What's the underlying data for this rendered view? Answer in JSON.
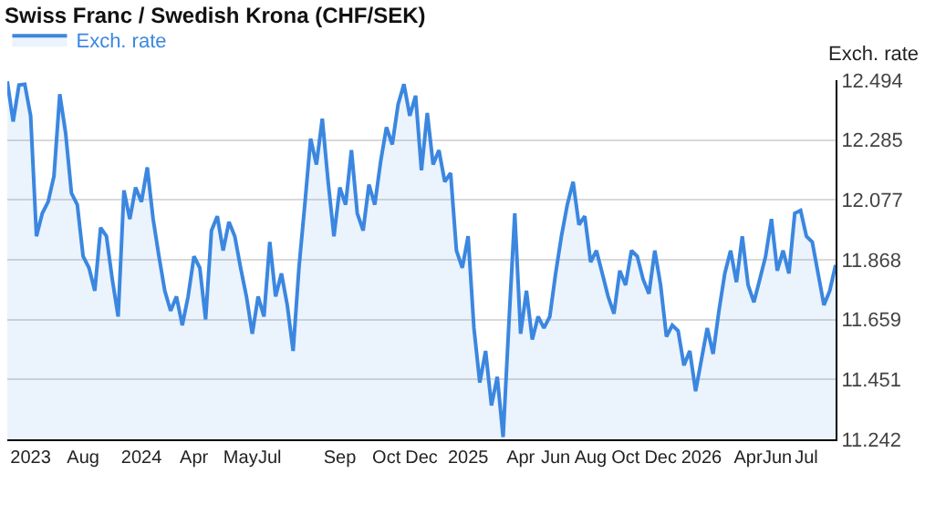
{
  "chart_data": {
    "type": "area",
    "title": "Swiss Franc / Swedish Krona (CHF/SEK)",
    "ylabel": "Exch. rate",
    "categories": [
      null,
      null,
      null,
      null,
      "2023",
      null,
      null,
      null,
      null,
      null,
      null,
      null,
      null,
      "Aug",
      null,
      null,
      null,
      null,
      null,
      null,
      null,
      null,
      null,
      "2024",
      null,
      null,
      null,
      null,
      null,
      null,
      null,
      null,
      "Apr",
      null,
      null,
      null,
      null,
      null,
      null,
      null,
      "May",
      null,
      null,
      null,
      null,
      "Jul",
      null,
      null,
      null,
      null,
      null,
      null,
      null,
      null,
      null,
      null,
      null,
      "Sep",
      null,
      null,
      null,
      null,
      null,
      null,
      null,
      "Oct",
      null,
      null,
      null,
      null,
      null,
      "Dec",
      null,
      null,
      null,
      null,
      null,
      null,
      null,
      "2025",
      null,
      null,
      null,
      null,
      null,
      null,
      null,
      null,
      "Apr",
      null,
      null,
      null,
      null,
      null,
      "Jun",
      null,
      null,
      null,
      null,
      null,
      "Aug",
      null,
      null,
      null,
      null,
      null,
      "Oct",
      null,
      null,
      null,
      null,
      null,
      "Dec",
      null,
      null,
      null,
      null,
      null,
      null,
      "2026",
      null,
      null,
      null,
      null,
      null,
      null,
      null,
      "Apr",
      null,
      null,
      null,
      null,
      "Jun",
      null,
      null,
      null,
      null,
      "Jul",
      null,
      null,
      null,
      null,
      null
    ],
    "series": [
      {
        "name": "Exch. rate",
        "color": "#3b87e0",
        "values": [
          12.49,
          12.35,
          12.477,
          12.48,
          12.37,
          11.95,
          12.03,
          12.07,
          12.16,
          12.445,
          12.31,
          12.1,
          12.06,
          11.88,
          11.84,
          11.76,
          11.98,
          11.95,
          11.8,
          11.67,
          12.11,
          12.01,
          12.12,
          12.07,
          12.19,
          12.01,
          11.88,
          11.76,
          11.69,
          11.74,
          11.64,
          11.74,
          11.88,
          11.84,
          11.66,
          11.97,
          12.02,
          11.9,
          12.0,
          11.95,
          11.84,
          11.74,
          11.61,
          11.74,
          11.67,
          11.93,
          11.74,
          11.82,
          11.71,
          11.55,
          11.84,
          12.06,
          12.29,
          12.2,
          12.36,
          12.14,
          11.95,
          12.12,
          12.06,
          12.25,
          12.03,
          11.97,
          12.13,
          12.06,
          12.21,
          12.33,
          12.27,
          12.41,
          12.48,
          12.37,
          12.44,
          12.18,
          12.38,
          12.2,
          12.25,
          12.14,
          12.17,
          11.9,
          11.84,
          11.95,
          11.63,
          11.44,
          11.55,
          11.36,
          11.46,
          11.25,
          11.65,
          12.03,
          11.61,
          11.76,
          11.59,
          11.67,
          11.63,
          11.67,
          11.82,
          11.95,
          12.06,
          12.14,
          11.99,
          12.02,
          11.86,
          11.9,
          11.82,
          11.74,
          11.68,
          11.83,
          11.78,
          11.9,
          11.88,
          11.8,
          11.75,
          11.9,
          11.78,
          11.6,
          11.64,
          11.62,
          11.5,
          11.55,
          11.41,
          11.52,
          11.63,
          11.54,
          11.69,
          11.82,
          11.9,
          11.79,
          11.95,
          11.78,
          11.72,
          11.8,
          11.88,
          12.01,
          11.83,
          11.9,
          11.82,
          12.03,
          12.04,
          11.95,
          11.93,
          11.82,
          11.71,
          11.76,
          11.85
        ]
      }
    ],
    "ylim": [
      11.242,
      12.494
    ],
    "yticks": [
      11.242,
      11.451,
      11.659,
      11.868,
      12.077,
      12.285,
      12.494
    ],
    "grid": "y",
    "legend": "top left",
    "line_style": "solid"
  }
}
